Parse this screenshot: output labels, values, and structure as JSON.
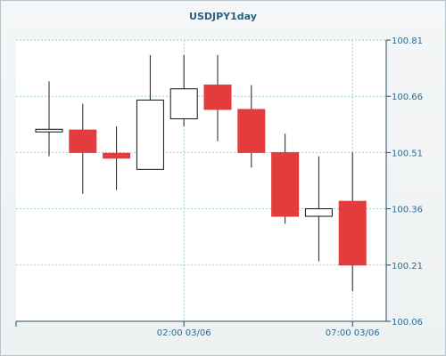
{
  "chart_data": {
    "type": "candlestick",
    "title": "USDJPY1day",
    "x_tick_labels": [
      "02:00 03/06",
      "07:00 03/06"
    ],
    "x_tick_index": [
      4,
      9
    ],
    "y_ticks": [
      100.06,
      100.21,
      100.36,
      100.51,
      100.66,
      100.81
    ],
    "ylim": [
      100.06,
      100.81
    ],
    "grid": true,
    "colors": {
      "up": "#ffffff",
      "down": "#e23c3c",
      "wick": "#222222",
      "grid": "#9ccbd8",
      "tick": "#2a6c8f"
    },
    "candles": [
      {
        "open": 100.565,
        "high": 100.7,
        "low": 100.5,
        "close": 100.572
      },
      {
        "open": 100.57,
        "high": 100.64,
        "low": 100.4,
        "close": 100.51
      },
      {
        "open": 100.508,
        "high": 100.58,
        "low": 100.41,
        "close": 100.495
      },
      {
        "open": 100.465,
        "high": 100.77,
        "low": 100.465,
        "close": 100.65
      },
      {
        "open": 100.6,
        "high": 100.77,
        "low": 100.58,
        "close": 100.68
      },
      {
        "open": 100.69,
        "high": 100.77,
        "low": 100.54,
        "close": 100.625
      },
      {
        "open": 100.625,
        "high": 100.69,
        "low": 100.47,
        "close": 100.51
      },
      {
        "open": 100.51,
        "high": 100.56,
        "low": 100.32,
        "close": 100.34
      },
      {
        "open": 100.34,
        "high": 100.5,
        "low": 100.22,
        "close": 100.36
      },
      {
        "open": 100.38,
        "high": 100.51,
        "low": 100.14,
        "close": 100.21
      }
    ]
  }
}
